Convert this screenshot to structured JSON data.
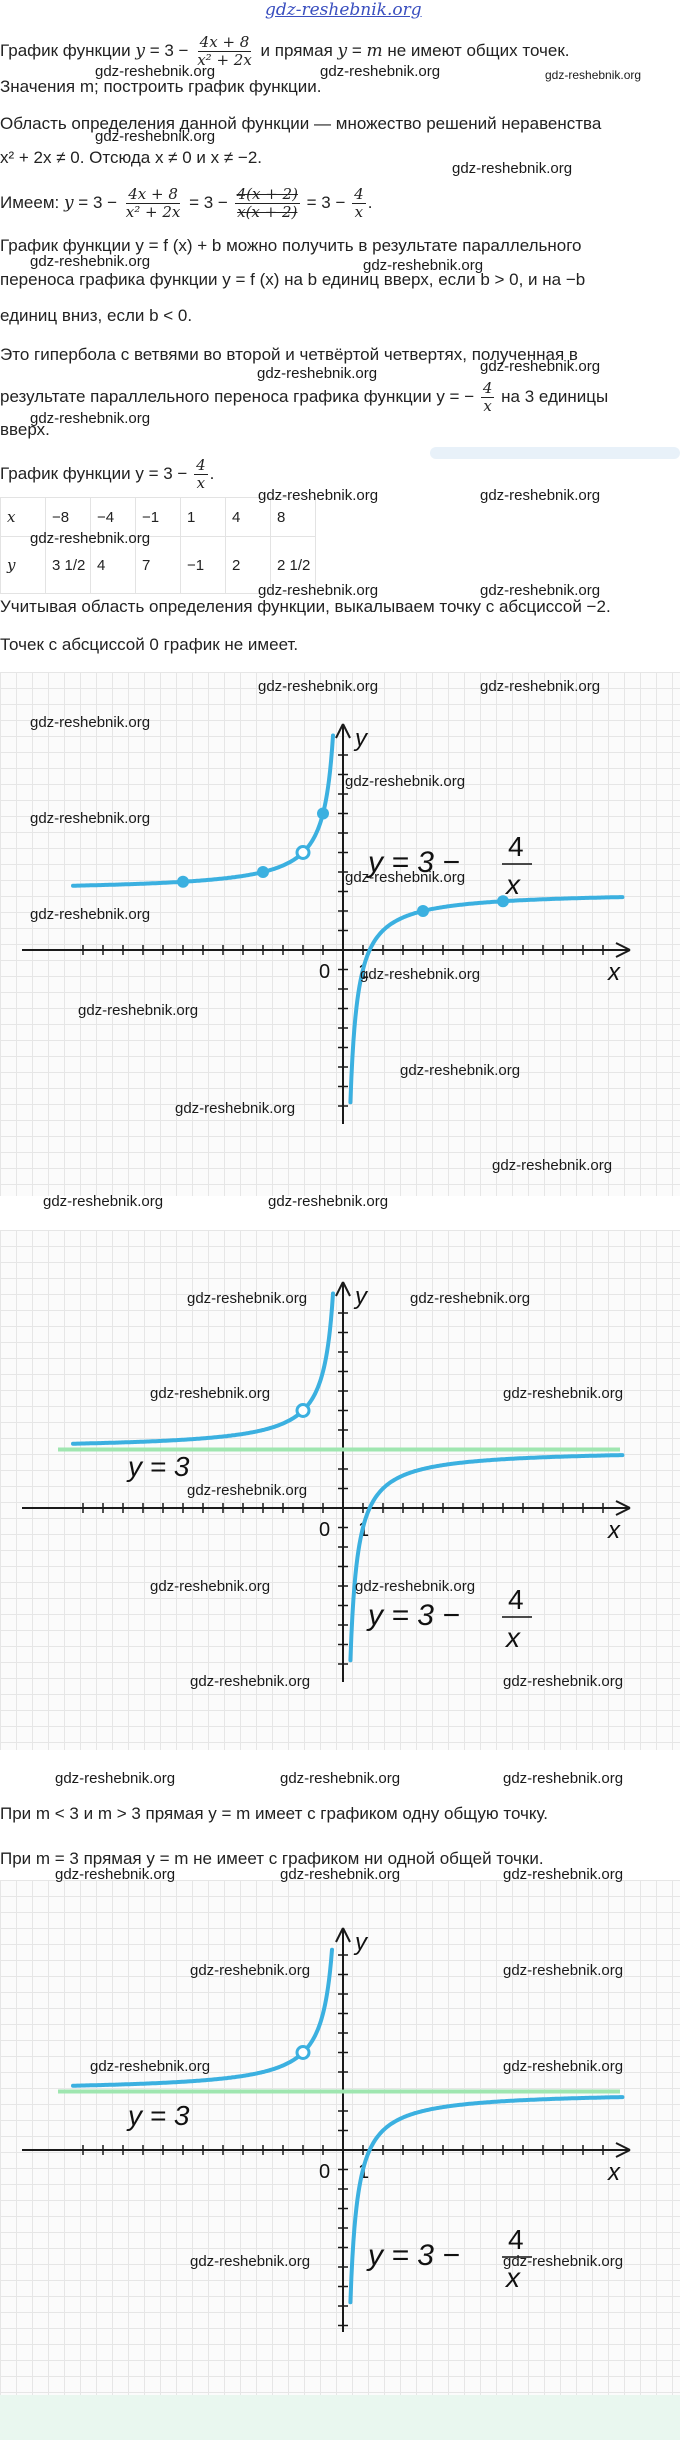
{
  "logo_text": "gdz-reshebnik.org",
  "watermark": "gdz-reshebnik.org",
  "para1": {
    "a": "График функции",
    "b": "и прямая",
    "c": "не имеют общих точек."
  },
  "para2": "Значения m; построить график функции.",
  "para3": "Область определения данной функции — множество решений неравенства",
  "para3b": {
    "a": "x² + 2x ≠ 0. Отсюда x ≠ 0 и x ≠ −2."
  },
  "para4": {
    "a": "Имеем:"
  },
  "para5": {
    "a": "График функции y = f (x) + b можно получить в результате параллельного",
    "b": "переноса графика функции y = f (x) на b единиц вверх, если b > 0, и на −b",
    "c": "единиц вниз, если b < 0."
  },
  "para6": {
    "a": "Это гипербола с ветвями во второй и четвёртой четвертях, полученная в",
    "b": "результате параллельного переноса графика функции y = −",
    "c": "на 3 единицы",
    "d": "вверх."
  },
  "para7": "График функции y = 3 −",
  "table": {
    "header": [
      "x",
      "−8",
      "−4",
      "−1",
      "1",
      "4",
      "8"
    ],
    "row_label": "y",
    "values": [
      "3 1/2",
      "4",
      "7",
      "−1",
      "2",
      "2 1/2"
    ]
  },
  "para8": "Учитывая область определения функции, выкалываем точку с абсциссой −2.",
  "para9": "Точек с абсциссой 0 график не имеет.",
  "graph": {
    "x_label": "x",
    "y_label": "y",
    "zero": "0",
    "one": "1",
    "formula": "y = 3 − 4/x",
    "asymptote_label": "y = 3"
  },
  "para10": "При m < 3 и m > 3 прямая y = m имеет с графиком одну общую точку.",
  "para11": "При m = 3 прямая y = m не имеет с графиком ни одной общей точки.",
  "colors": {
    "curve": "#3bb0e0",
    "asymptote": "#9fe6b0",
    "axes": "#1a1a1a"
  }
}
